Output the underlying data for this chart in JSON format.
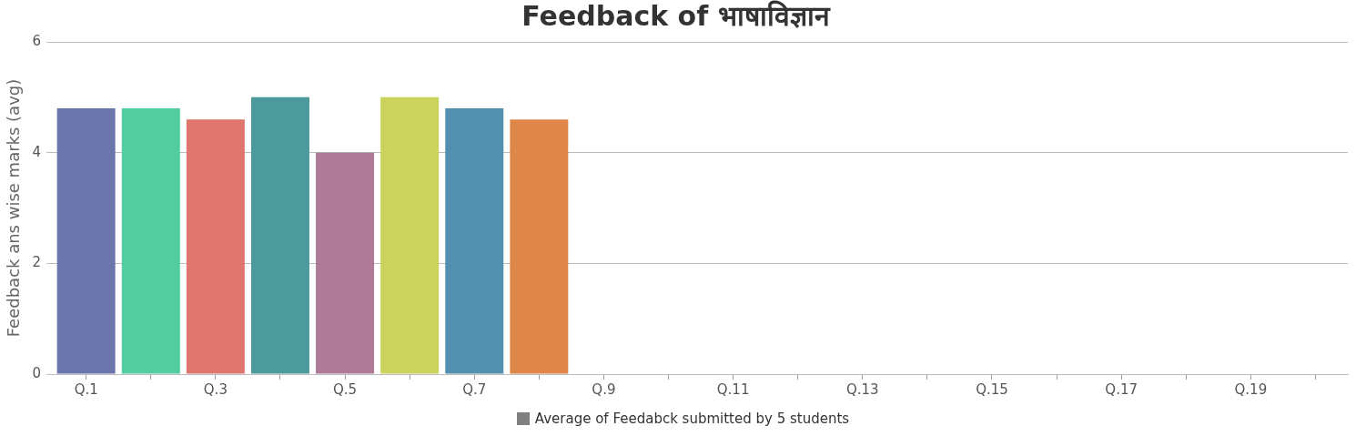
{
  "chart_data": {
    "type": "bar",
    "title": "Feedback of भाषाविज्ञान",
    "ylabel": "Feedback ans wise marks (avg)",
    "categories": [
      "Q.1",
      null,
      "Q.3",
      null,
      "Q.5",
      null,
      "Q.7",
      null,
      "Q.9",
      null,
      "Q.11",
      null,
      "Q.13",
      null,
      "Q.15",
      null,
      "Q.17",
      null,
      "Q.19",
      null
    ],
    "series": [
      {
        "name": "Average of Feedabck submitted by 5 students",
        "color": "#808080",
        "colors": [
          "#6a76ab",
          "#52cd9f",
          "#de766d",
          "#4d9a9d",
          "#ae7a97",
          "#cad35c",
          "#5291ae",
          "#df864b",
          "#808080",
          "#808080",
          "#808080",
          "#808080",
          "#808080",
          "#808080",
          "#808080",
          "#808080",
          "#808080",
          "#808080",
          "#808080",
          "#808080"
        ],
        "values": [
          4.8,
          4.8,
          4.6,
          5,
          4,
          5,
          4.8,
          4.6,
          null,
          null,
          null,
          null,
          null,
          null,
          null,
          null,
          null,
          null,
          null,
          null
        ]
      }
    ],
    "ylim": [
      0,
      6
    ],
    "yticks": [
      0,
      2,
      4,
      6
    ],
    "grid": "y",
    "legend": "bottom"
  }
}
